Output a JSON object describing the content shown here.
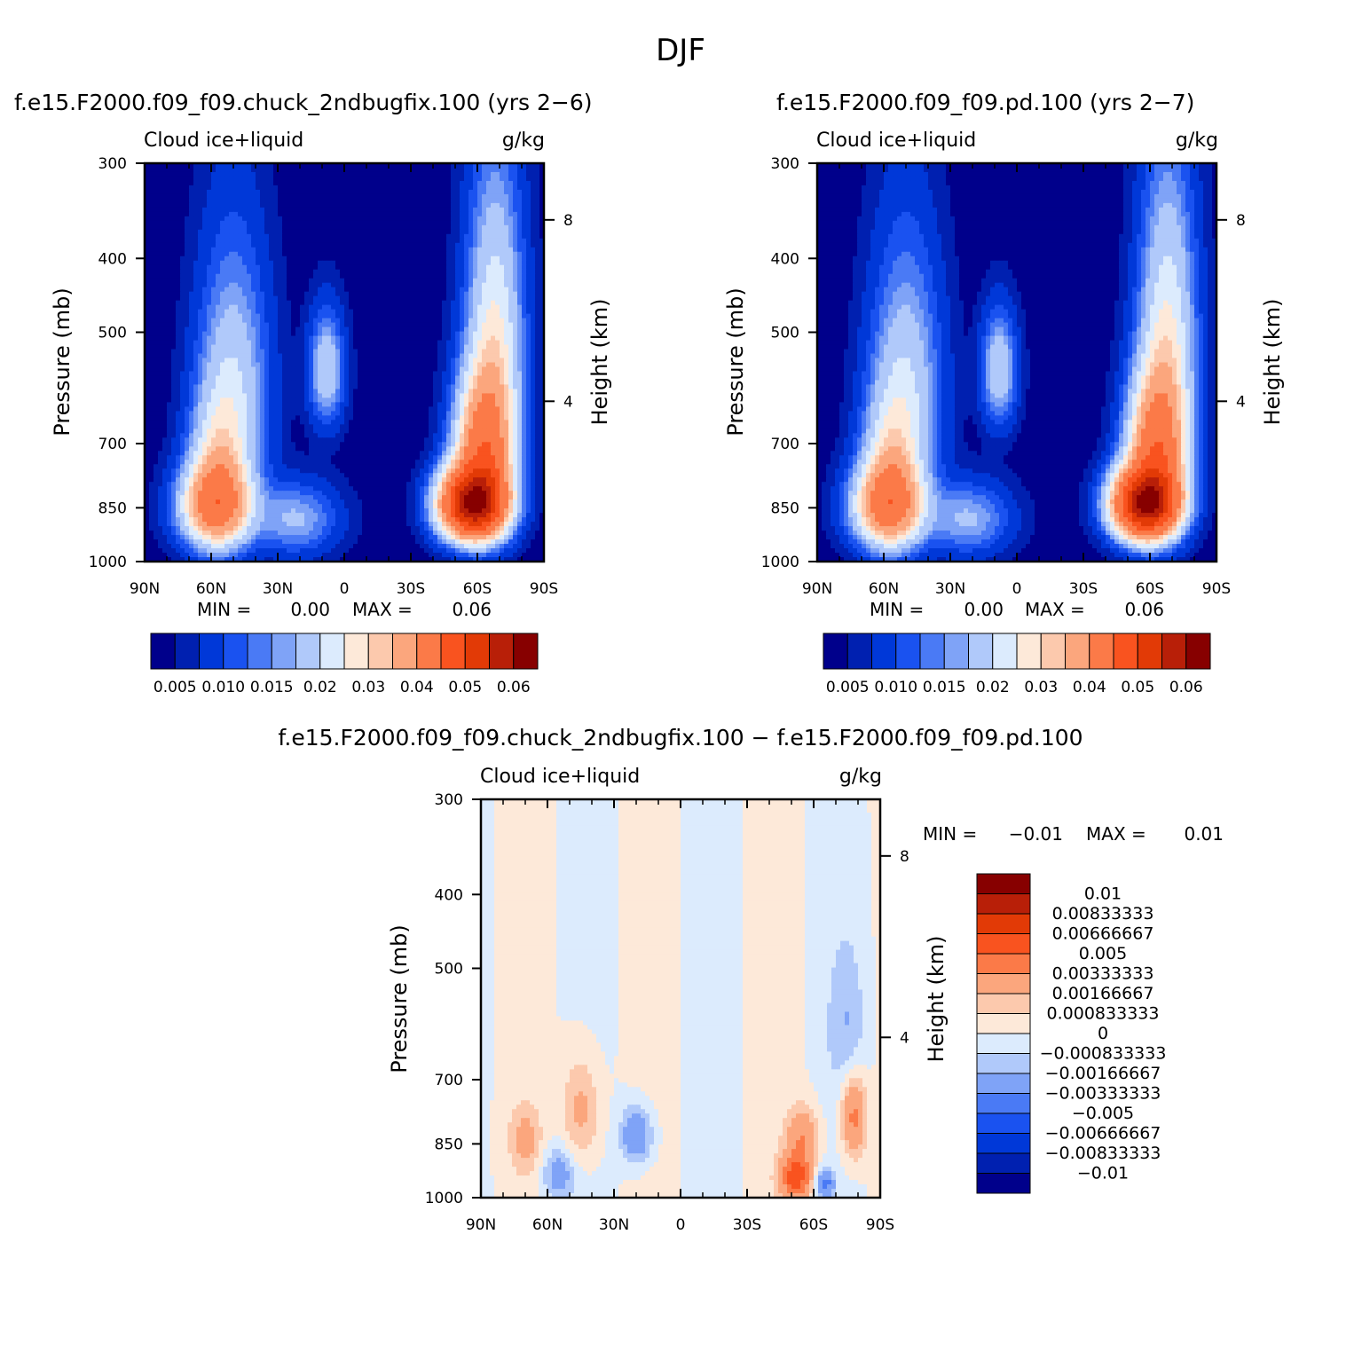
{
  "page_title": "DJF",
  "colors": {
    "abs_scale": [
      "#00008b",
      "#0020b0",
      "#0038d8",
      "#1a52f0",
      "#4a7af5",
      "#7fa3f7",
      "#b0c9fa",
      "#dcebfd",
      "#fde9d9",
      "#fcc9ad",
      "#fba67d",
      "#fb7a48",
      "#f9531f",
      "#e23a06",
      "#b81f08",
      "#870000"
    ],
    "diff_scale": [
      "#00008b",
      "#0020b0",
      "#0038d8",
      "#1a52f0",
      "#4a7af5",
      "#7fa3f7",
      "#b0c9fa",
      "#dcebfd",
      "#fde9d9",
      "#fcc9ad",
      "#fba67d",
      "#fb7a48",
      "#f9531f",
      "#e23a06",
      "#b81f08",
      "#870000"
    ]
  },
  "chart_data": [
    {
      "type": "heatmap",
      "title": "f.e15.F2000.f09_f09.chuck_2ndbugfix.100 (yrs 2−6)",
      "variable_label": "Cloud  ice+liquid",
      "units_label": "g/kg",
      "xlabel": "",
      "ylabel": "Pressure (mb)",
      "ylabel_right": "Height (km)",
      "x_ticks": [
        "90N",
        "60N",
        "30N",
        "0",
        "30S",
        "60S",
        "90S"
      ],
      "x_tick_values": [
        90,
        60,
        30,
        0,
        -30,
        -60,
        -90
      ],
      "xlim": [
        90,
        -90
      ],
      "y_ticks": [
        "300",
        "400",
        "500",
        "700",
        "850",
        "1000"
      ],
      "y_tick_values": [
        300,
        400,
        500,
        700,
        850,
        1000
      ],
      "ylim": [
        300,
        1000
      ],
      "y_right_ticks": [
        "8",
        "4"
      ],
      "y_right_pressure": [
        356,
        616
      ],
      "min_label": "MIN =",
      "min_value": "0.00",
      "max_label": "MAX =",
      "max_value": "0.06",
      "colorbar_labels": [
        "0.005",
        "0.010",
        "0.015",
        "0.02",
        "0.03",
        "0.04",
        "0.05",
        "0.06"
      ],
      "colorbar_values": [
        0.005,
        0.01,
        0.015,
        0.02,
        0.03,
        0.04,
        0.05,
        0.06
      ],
      "features": [
        {
          "lat": 58,
          "p": 845,
          "value": 0.02,
          "sigma_lat": 10,
          "sigma_p": 65
        },
        {
          "lat": 57,
          "p": 770,
          "value": 0.01,
          "sigma_lat": 8,
          "sigma_p": 110
        },
        {
          "lat": 50,
          "p": 600,
          "value": 0.007,
          "sigma_lat": 10,
          "sigma_p": 150
        },
        {
          "lat": -58,
          "p": 840,
          "value": 0.058,
          "sigma_lat": 9,
          "sigma_p": 55
        },
        {
          "lat": -63,
          "p": 720,
          "value": 0.025,
          "sigma_lat": 8,
          "sigma_p": 100
        },
        {
          "lat": -68,
          "p": 520,
          "value": 0.01,
          "sigma_lat": 8,
          "sigma_p": 150
        },
        {
          "lat": 8,
          "p": 560,
          "value": 0.007,
          "sigma_lat": 5,
          "sigma_p": 60
        },
        {
          "lat": 22,
          "p": 880,
          "value": 0.005,
          "sigma_lat": 12,
          "sigma_p": 60
        }
      ]
    },
    {
      "type": "heatmap",
      "title": "f.e15.F2000.f09_f09.pd.100 (yrs 2−7)",
      "variable_label": "Cloud  ice+liquid",
      "units_label": "g/kg",
      "xlabel": "",
      "ylabel": "Pressure (mb)",
      "ylabel_right": "Height (km)",
      "x_ticks": [
        "90N",
        "60N",
        "30N",
        "0",
        "30S",
        "60S",
        "90S"
      ],
      "x_tick_values": [
        90,
        60,
        30,
        0,
        -30,
        -60,
        -90
      ],
      "xlim": [
        90,
        -90
      ],
      "y_ticks": [
        "300",
        "400",
        "500",
        "700",
        "850",
        "1000"
      ],
      "y_tick_values": [
        300,
        400,
        500,
        700,
        850,
        1000
      ],
      "ylim": [
        300,
        1000
      ],
      "y_right_ticks": [
        "8",
        "4"
      ],
      "y_right_pressure": [
        356,
        616
      ],
      "min_label": "MIN =",
      "min_value": "0.00",
      "max_label": "MAX =",
      "max_value": "0.06",
      "colorbar_labels": [
        "0.005",
        "0.010",
        "0.015",
        "0.02",
        "0.03",
        "0.04",
        "0.05",
        "0.06"
      ],
      "colorbar_values": [
        0.005,
        0.01,
        0.015,
        0.02,
        0.03,
        0.04,
        0.05,
        0.06
      ],
      "features": [
        {
          "lat": 58,
          "p": 845,
          "value": 0.02,
          "sigma_lat": 10,
          "sigma_p": 65
        },
        {
          "lat": 57,
          "p": 770,
          "value": 0.01,
          "sigma_lat": 8,
          "sigma_p": 110
        },
        {
          "lat": 50,
          "p": 600,
          "value": 0.007,
          "sigma_lat": 10,
          "sigma_p": 150
        },
        {
          "lat": -58,
          "p": 840,
          "value": 0.057,
          "sigma_lat": 9,
          "sigma_p": 55
        },
        {
          "lat": -63,
          "p": 720,
          "value": 0.025,
          "sigma_lat": 8,
          "sigma_p": 100
        },
        {
          "lat": -68,
          "p": 520,
          "value": 0.01,
          "sigma_lat": 8,
          "sigma_p": 150
        },
        {
          "lat": 8,
          "p": 560,
          "value": 0.007,
          "sigma_lat": 5,
          "sigma_p": 60
        },
        {
          "lat": 22,
          "p": 880,
          "value": 0.005,
          "sigma_lat": 12,
          "sigma_p": 60
        }
      ]
    },
    {
      "type": "heatmap",
      "title": "f.e15.F2000.f09_f09.chuck_2ndbugfix.100 − f.e15.F2000.f09_f09.pd.100",
      "variable_label": "Cloud  ice+liquid",
      "units_label": "g/kg",
      "xlabel": "",
      "ylabel": "Pressure (mb)",
      "ylabel_right": "Height (km)",
      "x_ticks": [
        "90N",
        "60N",
        "30N",
        "0",
        "30S",
        "60S",
        "90S"
      ],
      "x_tick_values": [
        90,
        60,
        30,
        0,
        -30,
        -60,
        -90
      ],
      "xlim": [
        90,
        -90
      ],
      "y_ticks": [
        "300",
        "400",
        "500",
        "700",
        "850",
        "1000"
      ],
      "y_tick_values": [
        300,
        400,
        500,
        700,
        850,
        1000
      ],
      "ylim": [
        300,
        1000
      ],
      "y_right_ticks": [
        "8",
        "4"
      ],
      "y_right_pressure": [
        356,
        616
      ],
      "min_label": "MIN =",
      "min_value": "−0.01",
      "max_label": "MAX =",
      "max_value": "0.01",
      "colorbar_labels": [
        "0.01",
        "0.00833333",
        "0.00666667",
        "0.005",
        "0.00333333",
        "0.00166667",
        "0.000833333",
        "0",
        "−0.000833333",
        "−0.00166667",
        "−0.00333333",
        "−0.005",
        "−0.00666667",
        "−0.00833333",
        "−0.01"
      ],
      "colorbar_values": [
        0.01,
        0.00833333,
        0.00666667,
        0.005,
        0.00333333,
        0.00166667,
        0.000833333,
        0,
        -0.000833333,
        -0.00166667,
        -0.00333333,
        -0.005,
        -0.00666667,
        -0.00833333,
        -0.01
      ],
      "features": [
        {
          "lat": -52,
          "p": 940,
          "value": 0.006,
          "sigma_lat": 5,
          "sigma_p": 45
        },
        {
          "lat": -55,
          "p": 830,
          "value": 0.003,
          "sigma_lat": 5,
          "sigma_p": 50
        },
        {
          "lat": -78,
          "p": 780,
          "value": 0.004,
          "sigma_lat": 4,
          "sigma_p": 70
        },
        {
          "lat": 45,
          "p": 770,
          "value": 0.0022,
          "sigma_lat": 6,
          "sigma_p": 90
        },
        {
          "lat": 70,
          "p": 840,
          "value": 0.002,
          "sigma_lat": 5,
          "sigma_p": 60
        },
        {
          "lat": 20,
          "p": 830,
          "value": -0.0032,
          "sigma_lat": 5,
          "sigma_p": 50
        },
        {
          "lat": -65,
          "p": 960,
          "value": -0.004,
          "sigma_lat": 3,
          "sigma_p": 30
        },
        {
          "lat": 55,
          "p": 930,
          "value": -0.0025,
          "sigma_lat": 5,
          "sigma_p": 50
        },
        {
          "lat": -75,
          "p": 600,
          "value": -0.0015,
          "sigma_lat": 6,
          "sigma_p": 100
        }
      ]
    }
  ]
}
